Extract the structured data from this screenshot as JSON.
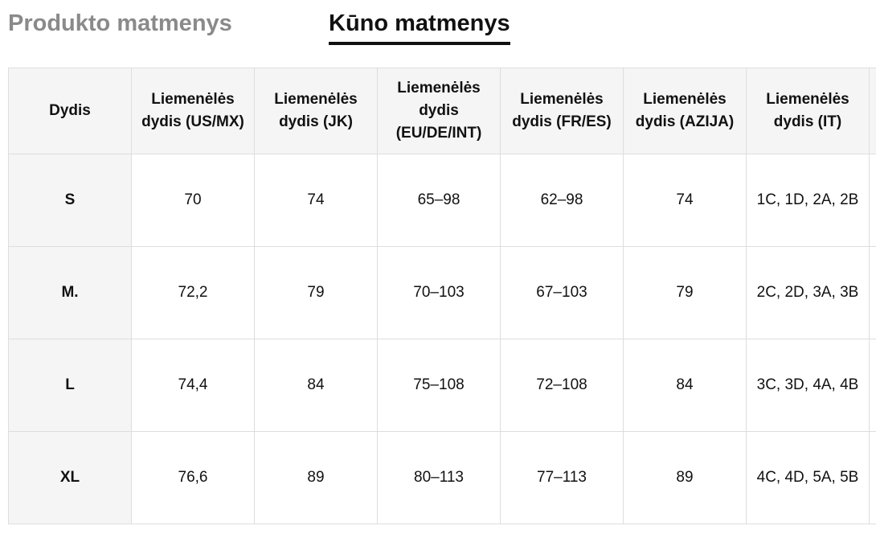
{
  "tabs": {
    "product": "Produkto matmenys",
    "body": "Kūno matmenys"
  },
  "table": {
    "headers": [
      "Dydis",
      "Liemenėlės dydis (US/MX)",
      "Liemenėlės dydis (JK)",
      "Liemenėlės dydis (EU/DE/INT)",
      "Liemenėlės dydis (FR/ES)",
      "Liemenėlės dydis (AZIJA)",
      "Liemenėlės dydis (IT)",
      ""
    ],
    "rows": [
      [
        "S",
        "70",
        "74",
        "65–98",
        "62–98",
        "74",
        "1C, 1D, 2A, 2B",
        ""
      ],
      [
        "M.",
        "72,2",
        "79",
        "70–103",
        "67–103",
        "79",
        "2C, 2D, 3A, 3B",
        ""
      ],
      [
        "L",
        "74,4",
        "84",
        "75–108",
        "72–108",
        "84",
        "3C, 3D, 4A, 4B",
        ""
      ],
      [
        "XL",
        "76,6",
        "89",
        "80–113",
        "77–113",
        "89",
        "4C, 4D, 5A, 5B",
        ""
      ]
    ]
  }
}
